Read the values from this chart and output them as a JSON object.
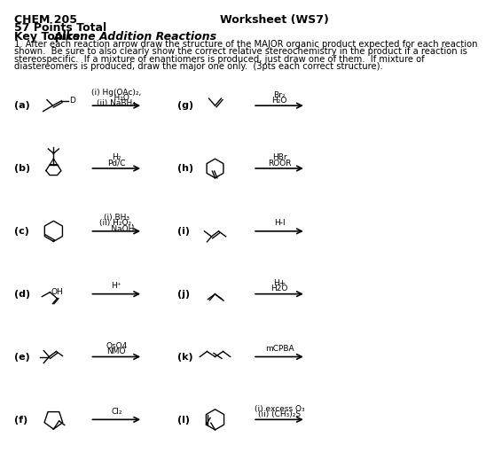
{
  "title_left": "CHEM 205",
  "title_right": "Worksheet (WS7)",
  "subtitle1": "57 Points Total",
  "subtitle2": "Key Topics: ",
  "subtitle2_italic": "Alkene Addition Reactions",
  "instruction": "1. After each reaction arrow draw the structure of the MAJOR organic product expected for each reaction\nshown.  Be sure to also clearly show the correct relative stereochemistry in the product if a reaction is\nstereospecific.  If a mixture of enantiomers is produced, just draw one of them.  If mixture of\ndiastereomers is produced, draw the major one only.  (3pts each correct structure).",
  "bg_color": "#ffffff",
  "text_color": "#000000"
}
